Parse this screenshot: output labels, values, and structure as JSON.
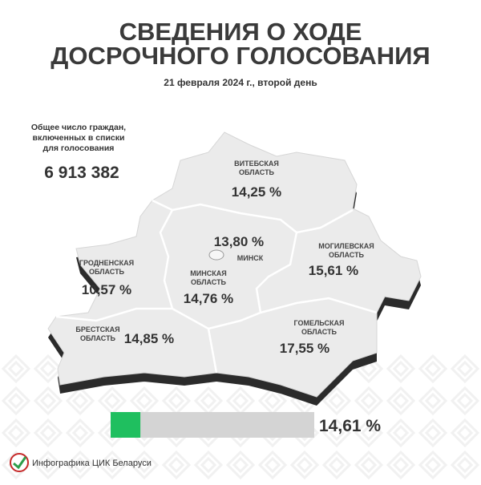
{
  "header": {
    "title_lines": [
      "СВЕДЕНИЯ О ХОДЕ",
      "ДОСРОЧНОГО ГОЛОСОВАНИЯ"
    ],
    "subtitle": "21 февраля 2024 г., второй день"
  },
  "voters": {
    "label_lines": [
      "Общее число граждан,",
      "включенных в списки",
      "для голосования"
    ],
    "value": "6 913 382"
  },
  "regions": [
    {
      "name_lines": [
        "ВИТЕБСКАЯ",
        "ОБЛАСТЬ"
      ],
      "turnout": "14,25 %"
    },
    {
      "name_lines": [
        "МИНСК"
      ],
      "turnout": "13,80 %"
    },
    {
      "name_lines": [
        "МОГИЛЕВСКАЯ",
        "ОБЛАСТЬ"
      ],
      "turnout": "15,61 %"
    },
    {
      "name_lines": [
        "ГРОДНЕНСКАЯ",
        "ОБЛАСТЬ"
      ],
      "turnout": "10,57 %"
    },
    {
      "name_lines": [
        "МИНСКАЯ",
        "ОБЛАСТЬ"
      ],
      "turnout": "14,76 %"
    },
    {
      "name_lines": [
        "БРЕСТСКАЯ",
        "ОБЛАСТЬ"
      ],
      "turnout": "14,85 %"
    },
    {
      "name_lines": [
        "ГОМЕЛЬСКАЯ",
        "ОБЛАСТЬ"
      ],
      "turnout": "17,55 %"
    }
  ],
  "total_turnout": {
    "value": 14.61,
    "label": "14,61 %"
  },
  "footer": "Инфографика ЦИК Беларуси"
}
